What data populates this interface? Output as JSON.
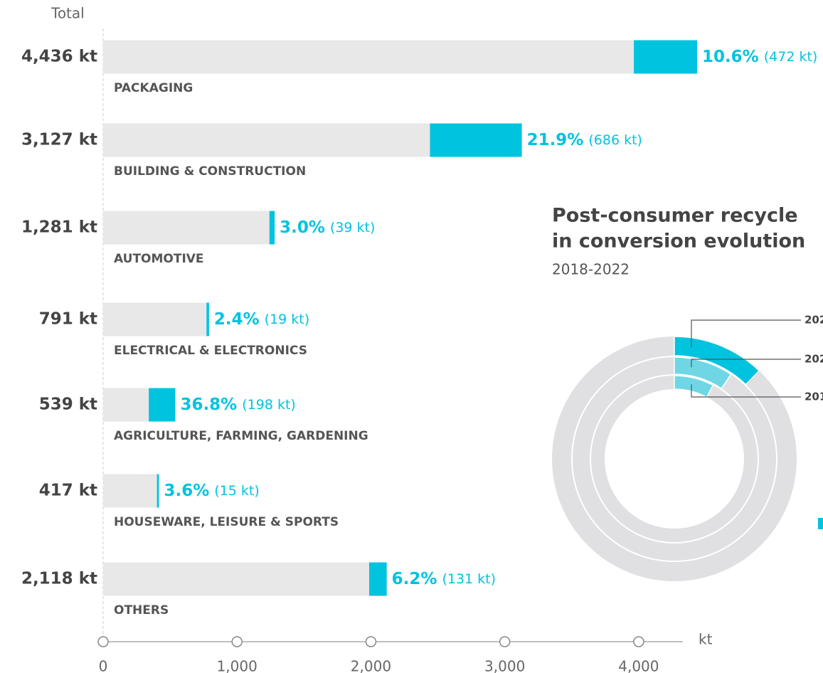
{
  "chart_data": [
    {
      "type": "bar",
      "axis_caption": "Total",
      "x_unit": "kt",
      "categories": [
        "PACKAGING",
        "BUILDING & CONSTRUCTION",
        "AUTOMOTIVE",
        "ELECTRICAL & ELECTRONICS",
        "AGRICULTURE, FARMING, GARDENING",
        "HOUSEWARE, LEISURE & SPORTS",
        "OTHERS"
      ],
      "values": [
        4436,
        3127,
        1281,
        791,
        539,
        417,
        2118
      ],
      "value_labels": [
        "4,436 kt",
        "3,127 kt",
        "1,281 kt",
        "791 kt",
        "539 kt",
        "417 kt",
        "2,118 kt"
      ],
      "recycled_values": [
        472,
        686,
        39,
        19,
        198,
        15,
        131
      ],
      "recycled_labels": [
        "(472 kt)",
        "(686 kt)",
        "(39 kt)",
        "(19 kt)",
        "(198 kt)",
        "(15 kt)",
        "(131 kt)"
      ],
      "share_values": [
        10.6,
        21.9,
        3.0,
        2.4,
        36.8,
        3.6,
        6.2
      ],
      "share_labels": [
        "10.6%",
        "21.9%",
        "3.0%",
        "2.4%",
        "36.8%",
        "3.6%",
        "6.2%"
      ],
      "color": "#e8e8e8",
      "recycled_color": "#00c3df",
      "xlim": [
        0,
        4330
      ],
      "xticks": [
        0,
        {
          "value": 1000,
          "label": "1,000"
        },
        {
          "value": 2000,
          "label": "2,000"
        },
        {
          "value": 3000,
          "label": "3,000"
        },
        {
          "value": 4000,
          "label": "4,000"
        }
      ]
    },
    {
      "type": "donut",
      "title_lines": [
        "Post-consumer recycle",
        "in conversion evolution"
      ],
      "subtitle": "2018-2022",
      "rings": [
        {
          "label": "202",
          "value": 12.2,
          "color": "#00c3df"
        },
        {
          "label": "202",
          "value": 9.4,
          "color": "#6fd6e5"
        },
        {
          "label": "201",
          "value": 7.7,
          "color": "#6fd6e5"
        }
      ],
      "track_color": "#e0e0e2"
    }
  ]
}
